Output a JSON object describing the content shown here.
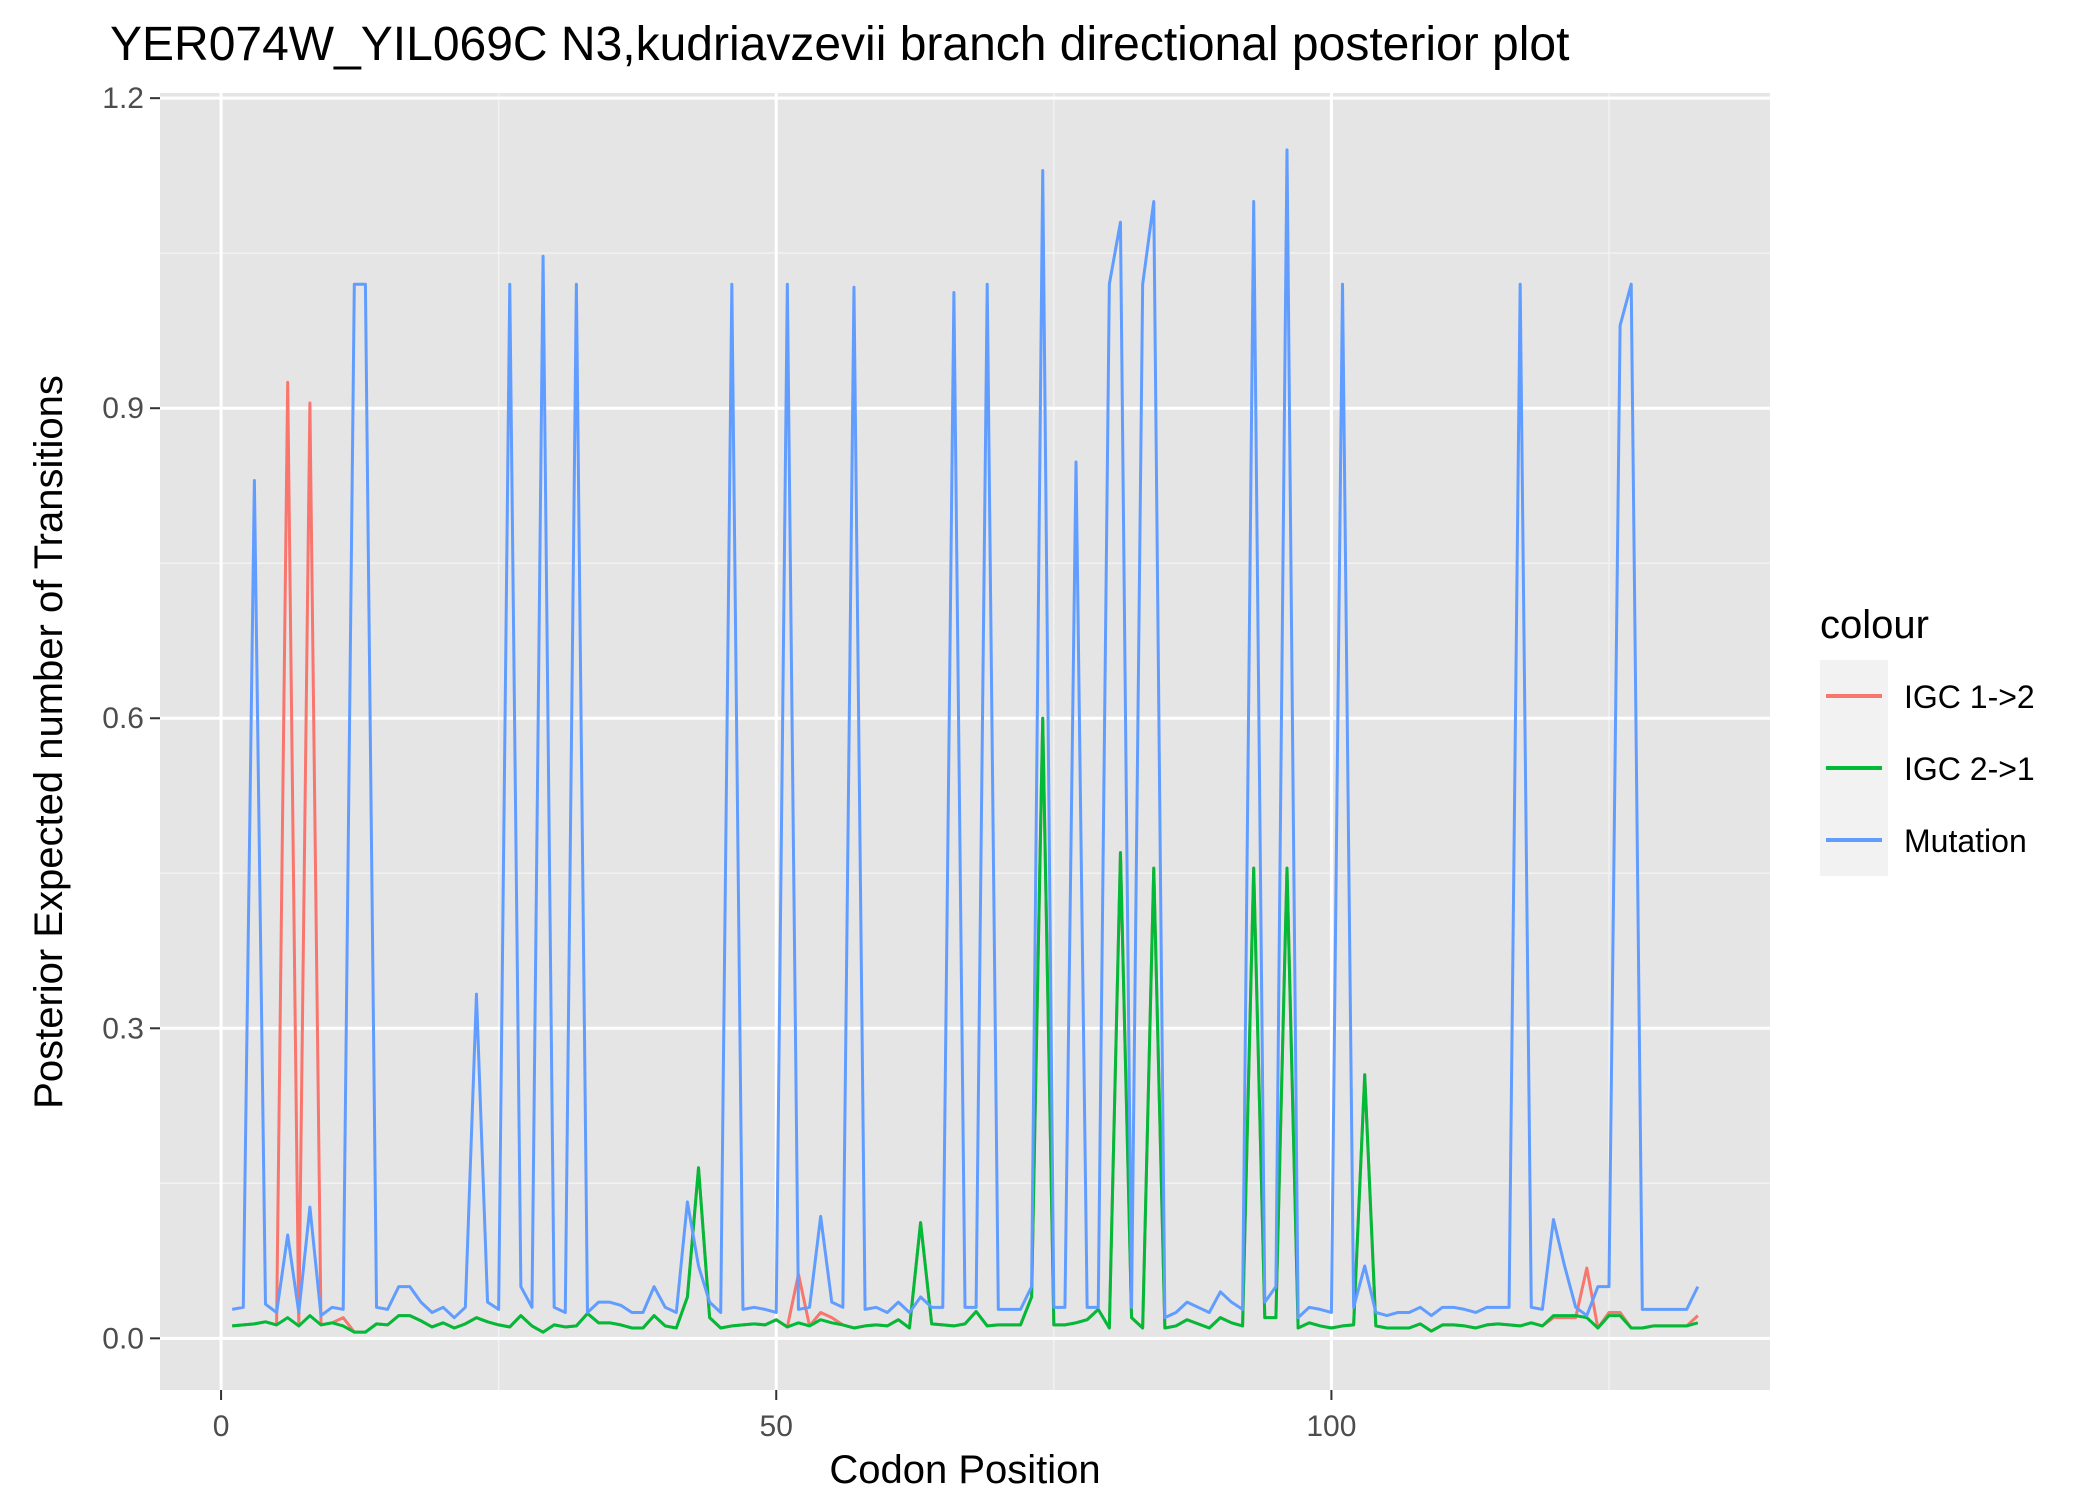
{
  "chart_data": {
    "type": "line",
    "title": "YER074W_YIL069C N3,kudriavzevii branch directional posterior plot",
    "xlabel": "Codon Position",
    "ylabel": "Posterior Expected number of Transitions",
    "xlim": [
      -5.5,
      139.5
    ],
    "ylim": [
      -0.05,
      1.205
    ],
    "x_ticks": [
      0,
      50,
      100
    ],
    "x_tick_labels": [
      "0",
      "50",
      "100"
    ],
    "y_ticks": [
      0.0,
      0.3,
      0.6,
      0.9,
      1.2
    ],
    "y_tick_labels": [
      "0.0",
      "0.3",
      "0.6",
      "0.9",
      "1.2"
    ],
    "grid": true,
    "background": "#e5e5e5",
    "legend": {
      "title": "colour",
      "position": "right"
    },
    "x": [
      1,
      2,
      3,
      4,
      5,
      6,
      7,
      8,
      9,
      10,
      11,
      12,
      13,
      14,
      15,
      16,
      17,
      18,
      19,
      20,
      21,
      22,
      23,
      24,
      25,
      26,
      27,
      28,
      29,
      30,
      31,
      32,
      33,
      34,
      35,
      36,
      37,
      38,
      39,
      40,
      41,
      42,
      43,
      44,
      45,
      46,
      47,
      48,
      49,
      50,
      51,
      52,
      53,
      54,
      55,
      56,
      57,
      58,
      59,
      60,
      61,
      62,
      63,
      64,
      65,
      66,
      67,
      68,
      69,
      70,
      71,
      72,
      73,
      74,
      75,
      76,
      77,
      78,
      79,
      80,
      81,
      82,
      83,
      84,
      85,
      86,
      87,
      88,
      89,
      90,
      91,
      92,
      93,
      94,
      95,
      96,
      97,
      98,
      99,
      100,
      101,
      102,
      103,
      104,
      105,
      106,
      107,
      108,
      109,
      110,
      111,
      112,
      113,
      114,
      115,
      116,
      117,
      118,
      119,
      120,
      121,
      122,
      123,
      124,
      125,
      126,
      127,
      128,
      129,
      130,
      131,
      132,
      133
    ],
    "series": [
      {
        "name": "IGC 1->2",
        "color": "#f8766d",
        "values": [
          0.012,
          0.013,
          0.014,
          0.016,
          0.013,
          0.925,
          0.012,
          0.905,
          0.013,
          0.015,
          0.02,
          0.006,
          0.006,
          0.014,
          0.013,
          0.022,
          0.022,
          0.017,
          0.011,
          0.015,
          0.01,
          0.014,
          0.02,
          0.016,
          0.013,
          0.011,
          0.022,
          0.012,
          0.006,
          0.013,
          0.011,
          0.012,
          0.024,
          0.015,
          0.015,
          0.013,
          0.01,
          0.01,
          0.022,
          0.012,
          0.01,
          0.04,
          0.165,
          0.02,
          0.01,
          0.012,
          0.013,
          0.014,
          0.013,
          0.018,
          0.011,
          0.062,
          0.012,
          0.025,
          0.02,
          0.013,
          0.01,
          0.012,
          0.013,
          0.012,
          0.018,
          0.01,
          0.112,
          0.014,
          0.013,
          0.012,
          0.014,
          0.026,
          0.012,
          0.013,
          0.013,
          0.013,
          0.04,
          0.6,
          0.013,
          0.013,
          0.015,
          0.018,
          0.028,
          0.01,
          0.47,
          0.02,
          0.01,
          0.455,
          0.01,
          0.012,
          0.018,
          0.014,
          0.01,
          0.02,
          0.015,
          0.012,
          0.455,
          0.02,
          0.02,
          0.455,
          0.01,
          0.015,
          0.012,
          0.01,
          0.012,
          0.013,
          0.255,
          0.012,
          0.01,
          0.01,
          0.01,
          0.014,
          0.007,
          0.013,
          0.013,
          0.012,
          0.01,
          0.013,
          0.014,
          0.013,
          0.012,
          0.015,
          0.012,
          0.02,
          0.02,
          0.02,
          0.068,
          0.01,
          0.025,
          0.025,
          0.01,
          0.01,
          0.012,
          0.012,
          0.012,
          0.012,
          0.022
        ]
      },
      {
        "name": "IGC 2->1",
        "color": "#00ba38",
        "values": [
          0.012,
          0.013,
          0.014,
          0.016,
          0.013,
          0.02,
          0.012,
          0.022,
          0.013,
          0.015,
          0.012,
          0.006,
          0.006,
          0.014,
          0.013,
          0.022,
          0.022,
          0.017,
          0.011,
          0.015,
          0.01,
          0.014,
          0.02,
          0.016,
          0.013,
          0.011,
          0.022,
          0.012,
          0.006,
          0.013,
          0.011,
          0.012,
          0.024,
          0.015,
          0.015,
          0.013,
          0.01,
          0.01,
          0.022,
          0.012,
          0.01,
          0.04,
          0.165,
          0.02,
          0.01,
          0.012,
          0.013,
          0.014,
          0.013,
          0.018,
          0.011,
          0.015,
          0.012,
          0.018,
          0.015,
          0.013,
          0.01,
          0.012,
          0.013,
          0.012,
          0.018,
          0.01,
          0.112,
          0.014,
          0.013,
          0.012,
          0.014,
          0.026,
          0.012,
          0.013,
          0.013,
          0.013,
          0.04,
          0.6,
          0.013,
          0.013,
          0.015,
          0.018,
          0.028,
          0.01,
          0.47,
          0.02,
          0.01,
          0.455,
          0.01,
          0.012,
          0.018,
          0.014,
          0.01,
          0.02,
          0.015,
          0.012,
          0.455,
          0.02,
          0.02,
          0.455,
          0.01,
          0.015,
          0.012,
          0.01,
          0.012,
          0.013,
          0.255,
          0.012,
          0.01,
          0.01,
          0.01,
          0.014,
          0.007,
          0.013,
          0.013,
          0.012,
          0.01,
          0.013,
          0.014,
          0.013,
          0.012,
          0.015,
          0.012,
          0.022,
          0.022,
          0.022,
          0.02,
          0.01,
          0.022,
          0.022,
          0.01,
          0.01,
          0.012,
          0.012,
          0.012,
          0.012,
          0.015
        ]
      },
      {
        "name": "Mutation",
        "color": "#619cff",
        "values": [
          0.028,
          0.03,
          0.83,
          0.033,
          0.025,
          0.1,
          0.025,
          0.127,
          0.022,
          0.03,
          0.028,
          1.02,
          1.02,
          0.03,
          0.028,
          0.05,
          0.05,
          0.035,
          0.025,
          0.03,
          0.02,
          0.03,
          0.333,
          0.035,
          0.028,
          1.02,
          0.05,
          0.03,
          1.047,
          0.03,
          0.025,
          1.02,
          0.025,
          0.035,
          0.035,
          0.032,
          0.025,
          0.025,
          0.05,
          0.03,
          0.025,
          0.132,
          0.07,
          0.035,
          0.025,
          1.02,
          0.028,
          0.03,
          0.028,
          0.025,
          1.02,
          0.028,
          0.03,
          0.118,
          0.035,
          0.03,
          1.017,
          0.028,
          0.03,
          0.025,
          0.035,
          0.025,
          0.04,
          0.03,
          0.03,
          1.012,
          0.03,
          0.03,
          1.02,
          0.028,
          0.028,
          0.028,
          0.05,
          1.13,
          0.03,
          0.03,
          0.848,
          0.03,
          0.03,
          1.02,
          1.08,
          0.03,
          1.02,
          1.1,
          0.02,
          0.025,
          0.035,
          0.03,
          0.025,
          0.045,
          0.035,
          0.028,
          1.1,
          0.035,
          0.05,
          1.15,
          0.02,
          0.03,
          0.028,
          0.025,
          1.02,
          0.03,
          0.07,
          0.025,
          0.022,
          0.025,
          0.025,
          0.03,
          0.022,
          0.03,
          0.03,
          0.028,
          0.025,
          0.03,
          0.03,
          0.03,
          1.02,
          0.03,
          0.028,
          0.115,
          0.07,
          0.03,
          0.022,
          0.05,
          0.05,
          0.98,
          1.02,
          0.028,
          0.028,
          0.028,
          0.028,
          0.028,
          0.05
        ]
      }
    ]
  }
}
